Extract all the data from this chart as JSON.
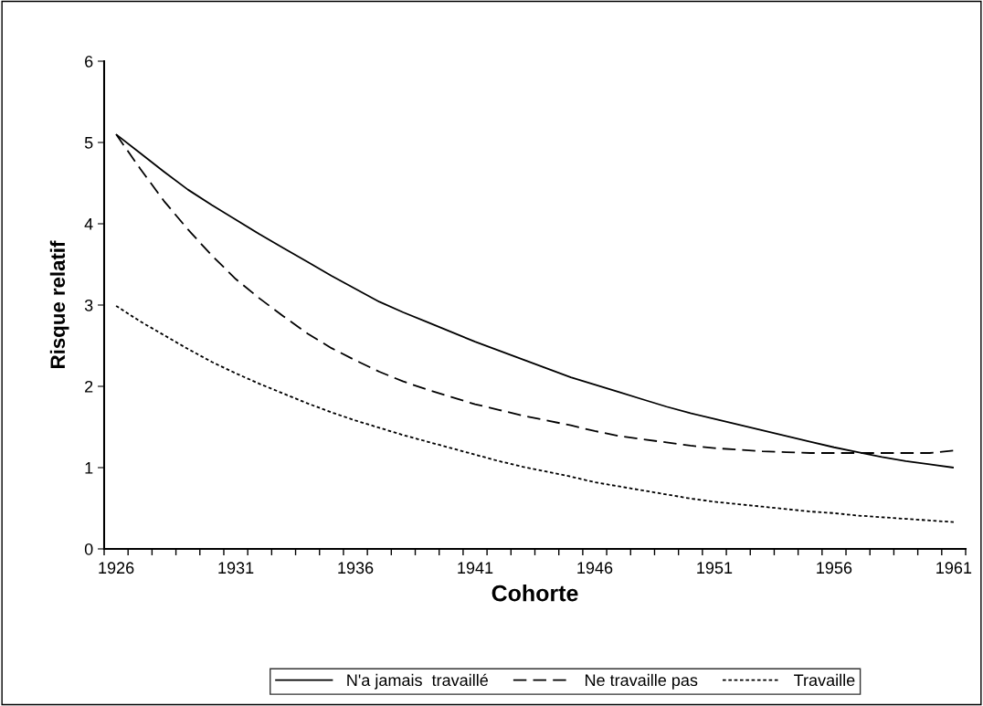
{
  "chart_data": {
    "type": "line",
    "xlabel": "Cohorte",
    "ylabel": "Risque relatif",
    "categories": [
      "1926",
      null,
      null,
      null,
      null,
      "1931",
      null,
      null,
      null,
      null,
      "1936",
      null,
      null,
      null,
      null,
      "1941",
      null,
      null,
      null,
      null,
      "1946",
      null,
      null,
      null,
      null,
      "1951",
      null,
      null,
      null,
      null,
      "1956",
      null,
      null,
      null,
      null,
      "1961"
    ],
    "series": [
      {
        "name": "N'a jamais  travaillé",
        "color": "#000000",
        "line_style": "solid",
        "values": [
          5.1,
          4.87,
          4.64,
          4.42,
          4.23,
          4.05,
          3.87,
          3.7,
          3.53,
          3.36,
          3.2,
          3.04,
          2.91,
          2.79,
          2.67,
          2.55,
          2.44,
          2.33,
          2.22,
          2.11,
          2.02,
          1.93,
          1.84,
          1.75,
          1.67,
          1.6,
          1.53,
          1.46,
          1.39,
          1.32,
          1.25,
          1.19,
          1.13,
          1.08,
          1.04,
          1.0
        ]
      },
      {
        "name": "Ne travaille pas",
        "color": "#000000",
        "line_style": "dashed",
        "values": [
          5.1,
          4.68,
          4.28,
          3.93,
          3.61,
          3.32,
          3.08,
          2.86,
          2.65,
          2.47,
          2.32,
          2.18,
          2.06,
          1.96,
          1.87,
          1.78,
          1.71,
          1.64,
          1.58,
          1.52,
          1.45,
          1.39,
          1.35,
          1.31,
          1.27,
          1.24,
          1.22,
          1.2,
          1.19,
          1.18,
          1.18,
          1.18,
          1.18,
          1.18,
          1.18,
          1.21
        ]
      },
      {
        "name": "Travaille",
        "color": "#000000",
        "line_style": "dotted",
        "values": [
          2.99,
          2.8,
          2.63,
          2.46,
          2.3,
          2.16,
          2.03,
          1.91,
          1.79,
          1.68,
          1.58,
          1.49,
          1.4,
          1.32,
          1.24,
          1.16,
          1.08,
          1.01,
          0.95,
          0.89,
          0.82,
          0.77,
          0.72,
          0.67,
          0.62,
          0.58,
          0.55,
          0.52,
          0.49,
          0.46,
          0.44,
          0.41,
          0.39,
          0.37,
          0.35,
          0.33
        ]
      }
    ],
    "ylim": [
      0,
      6
    ],
    "yticks": [
      0,
      1,
      2,
      3,
      4,
      5,
      6
    ],
    "grid": false,
    "legend": "bottom",
    "marker": "none"
  }
}
